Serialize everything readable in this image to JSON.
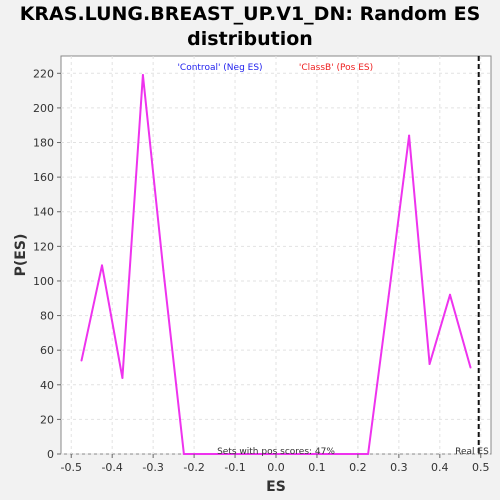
{
  "chart_data": {
    "type": "line",
    "title_lines": [
      "KRAS.LUNG.BREAST_UP.V1_DN: Random ES",
      "distribution"
    ],
    "xlabel": "ES",
    "ylabel": "P(ES)",
    "xlim": [
      -0.525,
      0.525
    ],
    "ylim": [
      0,
      230
    ],
    "x_ticks": [
      -0.5,
      -0.4,
      -0.3,
      -0.2,
      -0.1,
      0.0,
      0.1,
      0.2,
      0.3,
      0.4,
      0.5
    ],
    "x_tick_labels": [
      "-0.5",
      "-0.4",
      "-0.3",
      "-0.2",
      "-0.1",
      "0.0",
      "0.1",
      "0.2",
      "0.3",
      "0.4",
      "0.5"
    ],
    "y_ticks": [
      0,
      20,
      40,
      60,
      80,
      100,
      120,
      140,
      160,
      180,
      200,
      220
    ],
    "y_tick_labels": [
      "0",
      "20",
      "40",
      "60",
      "80",
      "100",
      "120",
      "140",
      "160",
      "180",
      "200",
      "220"
    ],
    "grid": true,
    "legend": [
      {
        "label": "'Controal' (Neg ES)",
        "color": "#2222ee"
      },
      {
        "label": "'ClassB' (Pos ES)",
        "color": "#ee2222"
      }
    ],
    "series": [
      {
        "color": "#ee33ee",
        "x": [
          -0.475,
          -0.425,
          -0.375,
          -0.325,
          -0.275,
          -0.225,
          -0.175,
          -0.125,
          -0.075,
          -0.025,
          0.025,
          0.075,
          0.125,
          0.175,
          0.225,
          0.275,
          0.325,
          0.375,
          0.425,
          0.475
        ],
        "y": [
          54,
          109,
          44,
          219,
          106,
          0,
          0,
          0,
          0,
          0,
          0,
          0,
          0,
          0,
          0,
          91,
          184,
          52,
          92,
          50
        ]
      }
    ],
    "real_es": {
      "x": 0.495,
      "label": "Real ES"
    },
    "annotation": "Sets with pos scores: 47%"
  }
}
